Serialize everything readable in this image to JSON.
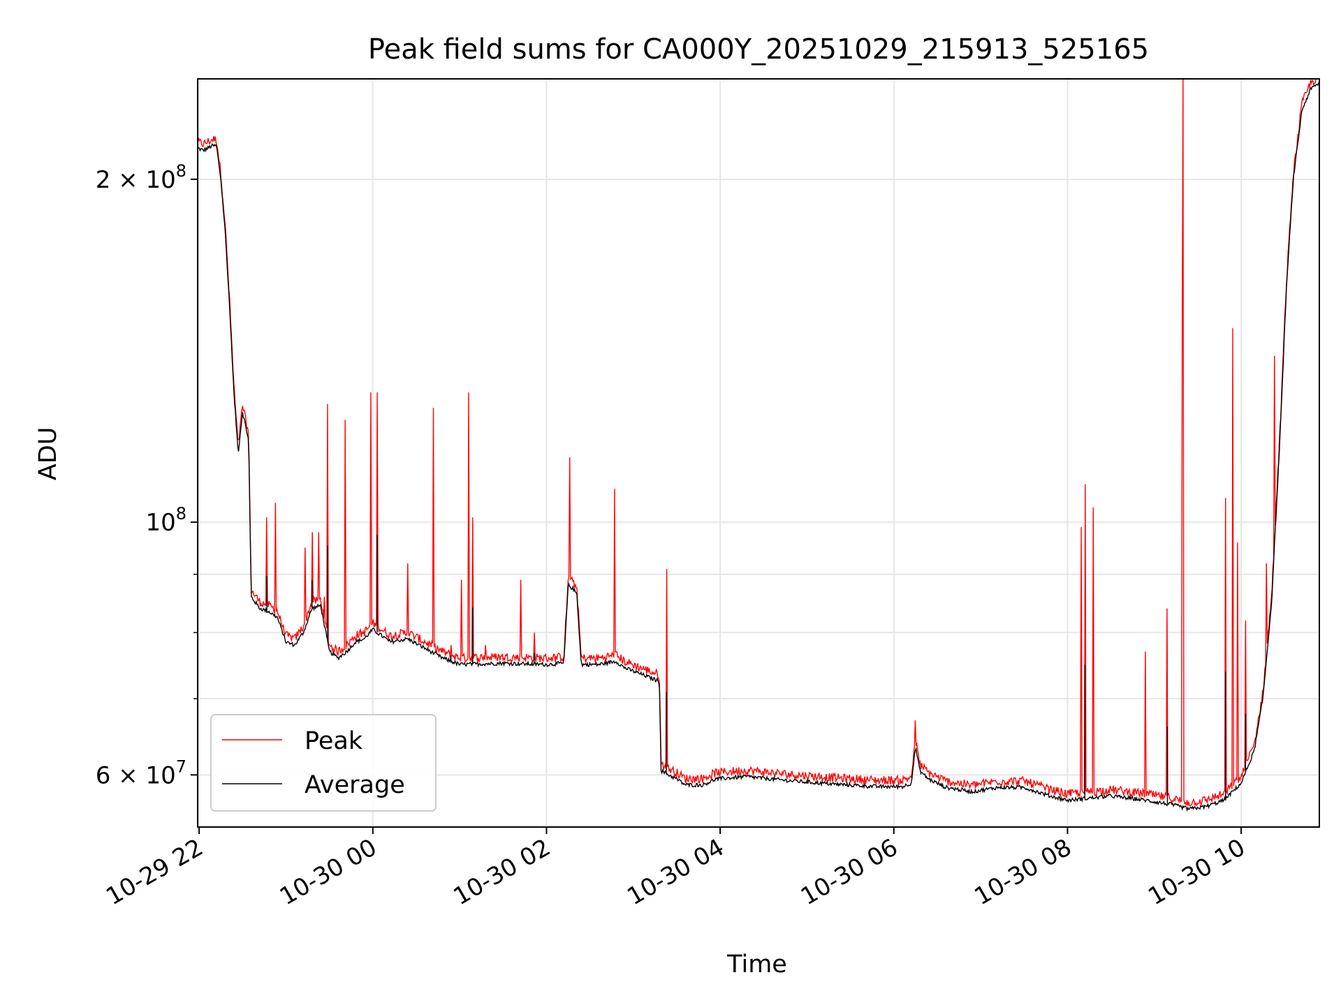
{
  "chart_data": {
    "type": "line",
    "title": "Peak field sums for CA000Y_20251029_215913_525165",
    "xlabel": "Time",
    "ylabel": "ADU",
    "yscale": "log",
    "ylim": [
      54000000,
      245000000
    ],
    "xlim_hours": [
      21.983,
      34.9
    ],
    "grid": true,
    "legend_location": "lower-left",
    "x_ticks": [
      {
        "h": 22,
        "label": "10-29 22"
      },
      {
        "h": 24,
        "label": "10-30 00"
      },
      {
        "h": 26,
        "label": "10-30 02"
      },
      {
        "h": 28,
        "label": "10-30 04"
      },
      {
        "h": 30,
        "label": "10-30 06"
      },
      {
        "h": 32,
        "label": "10-30 08"
      },
      {
        "h": 34,
        "label": "10-30 10"
      }
    ],
    "y_major_ticks": [
      {
        "value": 60000000,
        "base": "6 × 10",
        "exp": "7"
      },
      {
        "value": 100000000,
        "base": "10",
        "exp": "8"
      },
      {
        "value": 200000000,
        "base": "2 × 10",
        "exp": "8"
      }
    ],
    "y_minor_ticks": [
      70000000,
      80000000,
      90000000
    ],
    "series": [
      {
        "name": "Peak",
        "color": "#ff0000"
      },
      {
        "name": "Average",
        "color": "#000000"
      }
    ],
    "average_curve": [
      [
        21.983,
        213000000
      ],
      [
        22.05,
        212000000
      ],
      [
        22.15,
        214000000
      ],
      [
        22.2,
        214000000
      ],
      [
        22.25,
        200000000
      ],
      [
        22.3,
        180000000
      ],
      [
        22.35,
        155000000
      ],
      [
        22.4,
        130000000
      ],
      [
        22.45,
        115000000
      ],
      [
        22.5,
        125000000
      ],
      [
        22.55,
        120000000
      ],
      [
        22.57,
        118000000
      ],
      [
        22.6,
        86000000
      ],
      [
        22.7,
        84000000
      ],
      [
        22.8,
        83500000
      ],
      [
        22.9,
        82500000
      ],
      [
        23.0,
        78500000
      ],
      [
        23.1,
        78000000
      ],
      [
        23.2,
        80000000
      ],
      [
        23.3,
        84000000
      ],
      [
        23.4,
        84500000
      ],
      [
        23.5,
        77000000
      ],
      [
        23.6,
        76000000
      ],
      [
        23.7,
        77000000
      ],
      [
        23.8,
        78500000
      ],
      [
        23.9,
        79000000
      ],
      [
        24.0,
        80500000
      ],
      [
        24.1,
        79500000
      ],
      [
        24.2,
        78500000
      ],
      [
        24.4,
        79000000
      ],
      [
        24.6,
        77500000
      ],
      [
        24.8,
        76000000
      ],
      [
        25.0,
        75000000
      ],
      [
        25.5,
        75200000
      ],
      [
        26.0,
        75000000
      ],
      [
        26.2,
        75200000
      ],
      [
        26.25,
        88000000
      ],
      [
        26.3,
        87500000
      ],
      [
        26.35,
        86500000
      ],
      [
        26.4,
        75000000
      ],
      [
        26.6,
        75000000
      ],
      [
        26.8,
        75500000
      ],
      [
        26.9,
        74500000
      ],
      [
        27.1,
        73500000
      ],
      [
        27.3,
        72500000
      ],
      [
        27.32,
        60500000
      ],
      [
        27.5,
        59500000
      ],
      [
        27.6,
        58800000
      ],
      [
        27.8,
        58800000
      ],
      [
        27.95,
        59500000
      ],
      [
        28.3,
        59800000
      ],
      [
        28.8,
        59300000
      ],
      [
        29.3,
        58900000
      ],
      [
        29.8,
        58600000
      ],
      [
        30.1,
        58600000
      ],
      [
        30.2,
        59000000
      ],
      [
        30.25,
        63500000
      ],
      [
        30.3,
        60500000
      ],
      [
        30.4,
        59500000
      ],
      [
        30.6,
        58500000
      ],
      [
        30.9,
        58000000
      ],
      [
        31.2,
        58500000
      ],
      [
        31.5,
        58500000
      ],
      [
        31.8,
        57500000
      ],
      [
        32.0,
        57000000
      ],
      [
        32.2,
        57200000
      ],
      [
        32.5,
        57500000
      ],
      [
        32.9,
        57000000
      ],
      [
        33.2,
        56500000
      ],
      [
        33.4,
        56000000
      ],
      [
        33.6,
        56300000
      ],
      [
        33.8,
        57000000
      ],
      [
        34.0,
        59000000
      ],
      [
        34.15,
        63000000
      ],
      [
        34.25,
        70000000
      ],
      [
        34.35,
        85000000
      ],
      [
        34.45,
        120000000
      ],
      [
        34.52,
        160000000
      ],
      [
        34.6,
        200000000
      ],
      [
        34.7,
        230000000
      ],
      [
        34.8,
        240000000
      ],
      [
        34.9,
        243000000
      ]
    ],
    "peak_spikes": [
      [
        22.78,
        101000000
      ],
      [
        22.88,
        104000000
      ],
      [
        23.22,
        95000000
      ],
      [
        23.3,
        98000000
      ],
      [
        23.38,
        98000000
      ],
      [
        23.44,
        86000000
      ],
      [
        23.48,
        127000000
      ],
      [
        23.68,
        123000000
      ],
      [
        23.98,
        130000000
      ],
      [
        24.05,
        130000000
      ],
      [
        24.4,
        92000000
      ],
      [
        24.7,
        126000000
      ],
      [
        24.9,
        78000000
      ],
      [
        25.02,
        89000000
      ],
      [
        25.1,
        130000000
      ],
      [
        25.15,
        101000000
      ],
      [
        25.3,
        78000000
      ],
      [
        25.7,
        89000000
      ],
      [
        25.86,
        80000000
      ],
      [
        26.27,
        114000000
      ],
      [
        26.78,
        107000000
      ],
      [
        27.38,
        91000000
      ],
      [
        30.25,
        67000000
      ],
      [
        32.16,
        99000000
      ],
      [
        32.2,
        108000000
      ],
      [
        32.3,
        103000000
      ],
      [
        32.9,
        77000000
      ],
      [
        33.15,
        84000000
      ],
      [
        33.33,
        245000000
      ],
      [
        33.32,
        153000000
      ],
      [
        33.82,
        105000000
      ],
      [
        33.9,
        148000000
      ],
      [
        33.96,
        96000000
      ],
      [
        34.05,
        82000000
      ],
      [
        34.29,
        92000000
      ],
      [
        34.38,
        140000000
      ]
    ]
  }
}
